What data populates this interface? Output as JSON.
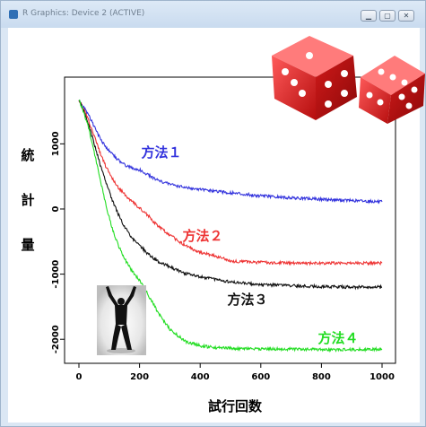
{
  "window": {
    "title": "R Graphics: Device 2 (ACTIVE)"
  },
  "chart_data": {
    "type": "line",
    "xlabel": "試行回数",
    "ylabel_chars": [
      "統",
      "計",
      "量"
    ],
    "xlim": [
      0,
      1000
    ],
    "ylim": [
      -2300,
      1900
    ],
    "xticks": [
      "0",
      "200",
      "400",
      "600",
      "800",
      "1000"
    ],
    "xtick_values": [
      0,
      200,
      400,
      600,
      800,
      1000
    ],
    "yticks": [
      "-2000",
      "-1000",
      "0",
      "1000"
    ],
    "ytick_values": [
      -2000,
      -1000,
      0,
      1000
    ],
    "series": [
      {
        "name": "方法１",
        "color": "#3333dd",
        "x": [
          0,
          10,
          30,
          50,
          70,
          90,
          110,
          130,
          150,
          170,
          200,
          230,
          260,
          300,
          350,
          400,
          450,
          500,
          600,
          700,
          800,
          900,
          1000
        ],
        "y": [
          1670,
          1600,
          1460,
          1270,
          1080,
          940,
          840,
          750,
          680,
          640,
          600,
          520,
          440,
          380,
          330,
          300,
          270,
          250,
          200,
          170,
          150,
          130,
          110
        ]
      },
      {
        "name": "方法２",
        "color": "#ee3333",
        "x": [
          0,
          10,
          30,
          50,
          70,
          90,
          110,
          130,
          150,
          170,
          200,
          230,
          260,
          300,
          350,
          400,
          450,
          500,
          600,
          700,
          800,
          900,
          1000
        ],
        "y": [
          1680,
          1580,
          1380,
          1120,
          860,
          640,
          470,
          330,
          230,
          130,
          20,
          -110,
          -260,
          -400,
          -560,
          -670,
          -720,
          -800,
          -820,
          -830,
          -830,
          -830,
          -830
        ]
      },
      {
        "name": "方法３",
        "color": "#111111",
        "x": [
          0,
          10,
          30,
          50,
          70,
          90,
          110,
          130,
          150,
          170,
          200,
          230,
          260,
          300,
          350,
          400,
          450,
          500,
          600,
          700,
          800,
          900,
          1000
        ],
        "y": [
          1680,
          1570,
          1330,
          1010,
          680,
          400,
          140,
          -80,
          -270,
          -420,
          -560,
          -700,
          -800,
          -890,
          -990,
          -1040,
          -1080,
          -1120,
          -1160,
          -1180,
          -1190,
          -1200,
          -1200
        ]
      },
      {
        "name": "方法４",
        "color": "#22dd22",
        "x": [
          0,
          10,
          30,
          50,
          70,
          90,
          110,
          130,
          150,
          170,
          200,
          230,
          260,
          300,
          350,
          400,
          450,
          500,
          600,
          700,
          800,
          900,
          1000
        ],
        "y": [
          1680,
          1560,
          1280,
          880,
          460,
          40,
          -300,
          -560,
          -760,
          -920,
          -1100,
          -1330,
          -1580,
          -1850,
          -2030,
          -2100,
          -2130,
          -2140,
          -2150,
          -2150,
          -2160,
          -2160,
          -2150
        ]
      }
    ]
  }
}
